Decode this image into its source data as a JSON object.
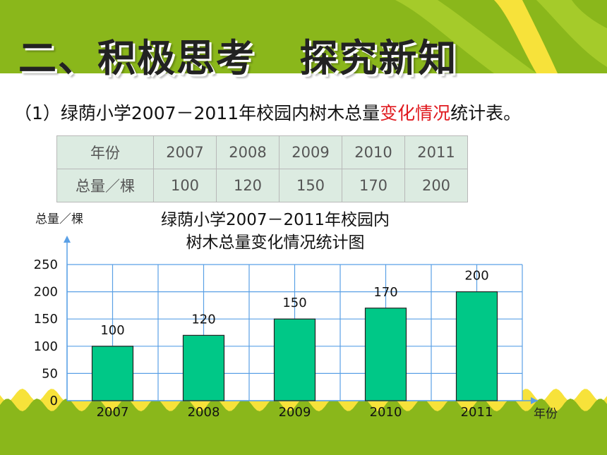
{
  "page": {
    "title": "二、积极思考   探究新知",
    "subtitle_prefix": "（1）绿荫小学2007－2011年校园内树木总量",
    "subtitle_highlight": "变化情况",
    "subtitle_suffix": "统计表。"
  },
  "colors": {
    "banner": "#8ab71b",
    "banner_light": "#a5cb2a",
    "bar": "#00c887",
    "grid": "#5aa0e6",
    "highlight": "#e0191e",
    "table_bg": "#dcebe1",
    "wave_yellow": "#f7e23a"
  },
  "table": {
    "header_label": "年份",
    "value_label": "总量／棵",
    "years": [
      "2007",
      "2008",
      "2009",
      "2010",
      "2011"
    ],
    "values": [
      "100",
      "120",
      "150",
      "170",
      "200"
    ]
  },
  "chart_data": {
    "type": "bar",
    "title_line1": "绿荫小学2007－2011年校园内",
    "title_line2": "树木总量变化情况统计图",
    "ylabel": "总量／棵",
    "xlabel": "年份",
    "categories": [
      "2007",
      "2008",
      "2009",
      "2010",
      "2011"
    ],
    "values": [
      100,
      120,
      150,
      170,
      200
    ],
    "y_ticks": [
      0,
      50,
      100,
      150,
      200,
      250
    ],
    "ylim": [
      0,
      250
    ],
    "grid": true,
    "data_labels": true
  }
}
